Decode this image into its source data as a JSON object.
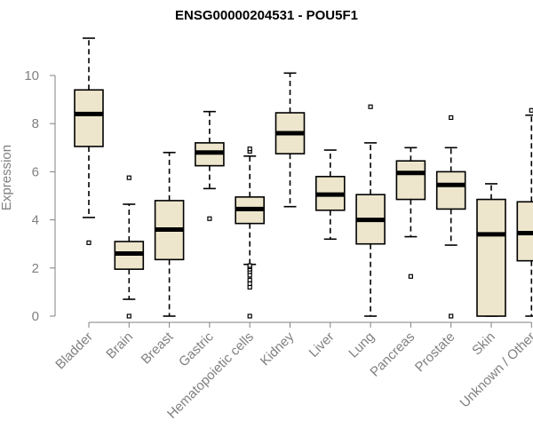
{
  "chart_data": {
    "type": "boxplot",
    "title": "ENSG00000204531 - POU5F1",
    "ylabel": "Expression",
    "xlabel": "",
    "ylim": [
      0,
      11.5
    ],
    "yticks": [
      0,
      2,
      4,
      6,
      8,
      10
    ],
    "grid": false,
    "box_color": "#ede6cc",
    "groups": [
      {
        "name": "Bladder",
        "lower_whisker": 4.1,
        "q1": 7.05,
        "median": 8.4,
        "q3": 9.4,
        "upper_whisker": 11.55,
        "outliers": [
          3.05
        ]
      },
      {
        "name": "Brain",
        "lower_whisker": 0.7,
        "q1": 1.95,
        "median": 2.6,
        "q3": 3.1,
        "upper_whisker": 4.65,
        "outliers": [
          0.0,
          5.75
        ]
      },
      {
        "name": "Breast",
        "lower_whisker": 0.0,
        "q1": 2.35,
        "median": 3.6,
        "q3": 4.8,
        "upper_whisker": 6.8,
        "outliers": []
      },
      {
        "name": "Gastric",
        "lower_whisker": 5.3,
        "q1": 6.25,
        "median": 6.8,
        "q3": 7.2,
        "upper_whisker": 8.5,
        "outliers": [
          4.05
        ]
      },
      {
        "name": "Hematopoietic cells",
        "lower_whisker": 2.15,
        "q1": 3.85,
        "median": 4.45,
        "q3": 4.95,
        "upper_whisker": 6.65,
        "outliers": [
          0.0,
          1.2,
          1.35,
          1.5,
          1.7,
          1.85,
          1.95,
          2.05,
          2.1,
          6.85,
          6.95
        ]
      },
      {
        "name": "Kidney",
        "lower_whisker": 4.55,
        "q1": 6.75,
        "median": 7.6,
        "q3": 8.45,
        "upper_whisker": 10.1,
        "outliers": []
      },
      {
        "name": "Liver",
        "lower_whisker": 3.2,
        "q1": 4.4,
        "median": 5.05,
        "q3": 5.8,
        "upper_whisker": 6.9,
        "outliers": []
      },
      {
        "name": "Lung",
        "lower_whisker": 0.0,
        "q1": 3.0,
        "median": 4.0,
        "q3": 5.05,
        "upper_whisker": 7.2,
        "outliers": [
          8.7
        ]
      },
      {
        "name": "Pancreas",
        "lower_whisker": 3.3,
        "q1": 4.85,
        "median": 5.95,
        "q3": 6.45,
        "upper_whisker": 7.0,
        "outliers": [
          1.65
        ]
      },
      {
        "name": "Prostate",
        "lower_whisker": 2.95,
        "q1": 4.45,
        "median": 5.45,
        "q3": 6.0,
        "upper_whisker": 7.0,
        "outliers": [
          0.0,
          8.25
        ]
      },
      {
        "name": "Skin",
        "lower_whisker": 0.0,
        "q1": 0.0,
        "median": 3.4,
        "q3": 4.85,
        "upper_whisker": 5.5,
        "outliers": []
      },
      {
        "name": "Unknown / Other",
        "lower_whisker": 0.0,
        "q1": 2.3,
        "median": 3.45,
        "q3": 4.75,
        "upper_whisker": 8.35,
        "outliers": [
          8.55
        ]
      }
    ]
  }
}
